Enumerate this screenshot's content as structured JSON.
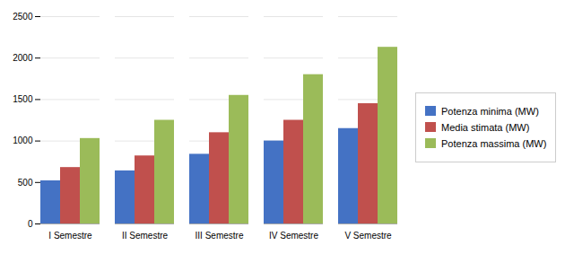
{
  "chart_data": {
    "type": "bar",
    "categories": [
      "I Semestre",
      "II Semestre",
      "III Semestre",
      "IV Semestre",
      "V Semestre"
    ],
    "series": [
      {
        "name": "Potenza minima (MW)",
        "color": "#4472C4",
        "values": [
          520,
          640,
          840,
          1000,
          1150
        ]
      },
      {
        "name": "Media stimata (MW)",
        "color": "#C0504D",
        "values": [
          680,
          820,
          1100,
          1250,
          1450
        ]
      },
      {
        "name": "Potenza massima (MW)",
        "color": "#9BBB59",
        "values": [
          1030,
          1250,
          1550,
          1800,
          2130
        ]
      }
    ],
    "ylim": [
      0,
      2500
    ],
    "yticks": [
      0,
      500,
      1000,
      1500,
      2000,
      2500
    ],
    "grid": true,
    "legend": "right"
  }
}
